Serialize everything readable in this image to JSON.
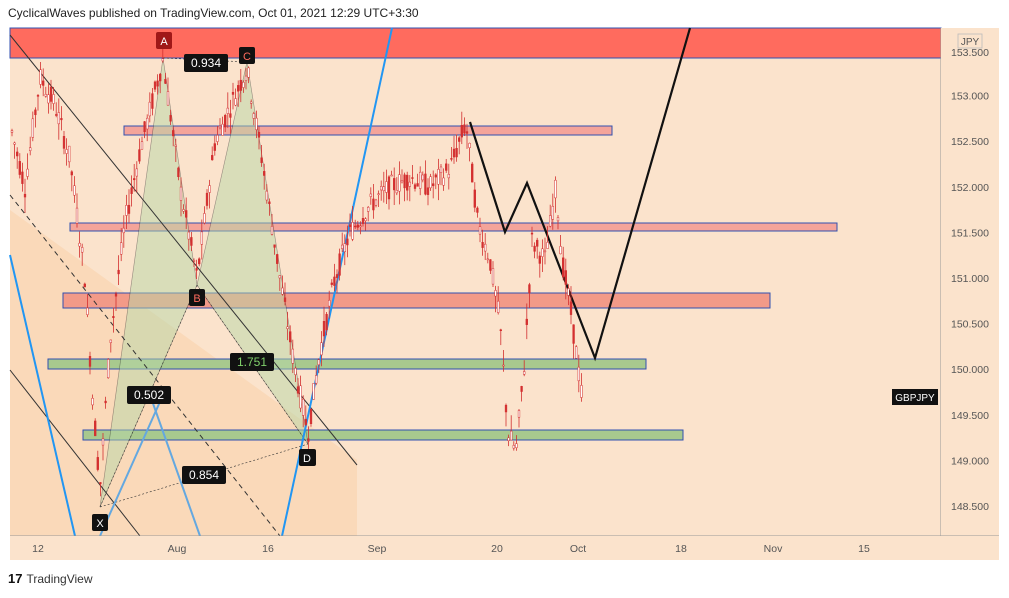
{
  "header": {
    "published": "CyclicalWaves published on TradingView.com, Oct 01, 2021 12:29 UTC+3:30"
  },
  "footer": {
    "logo": "17",
    "brand": "TradingView"
  },
  "chart_data": {
    "type": "candlestick",
    "symbol": "GBPJPY",
    "currency": "JPY",
    "last_price_label": "GBPJPY",
    "ylim": [
      148.1,
      153.9
    ],
    "y_ticks": [
      "153.000",
      "152.500",
      "152.000",
      "151.500",
      "151.000",
      "150.500",
      "150.000",
      "149.500",
      "149.000",
      "148.500"
    ],
    "y_tick_values": [
      153.0,
      152.5,
      152.0,
      151.5,
      151.0,
      150.5,
      150.0,
      149.5,
      149.0,
      148.5
    ],
    "top_partial_tick": "153.500",
    "x_ticks": [
      "12",
      "Aug",
      "16",
      "Sep",
      "20",
      "Oct",
      "18",
      "Nov",
      "15"
    ],
    "pattern_points": {
      "X": "X",
      "A": "A",
      "B": "B",
      "C": "C",
      "D": "D"
    },
    "ratios": {
      "xb": "0.502",
      "ac": "0.934",
      "bd": "1.751",
      "xd": "0.854"
    },
    "zones": [
      {
        "name": "supply-top",
        "color": "#ff6b5e"
      },
      {
        "name": "zone-152.6",
        "color": "#f4a49a"
      },
      {
        "name": "zone-151.55",
        "color": "#f4a49a"
      },
      {
        "name": "zone-150.75",
        "color": "#f29a88"
      },
      {
        "name": "zone-150.05",
        "color": "#a8c98e"
      },
      {
        "name": "zone-149.25",
        "color": "#a8c98e"
      }
    ],
    "colors": {
      "bg": "#fbe3cc",
      "candle": "#d32f2f",
      "blue_line": "#2196f3",
      "black_line": "#111111"
    }
  }
}
